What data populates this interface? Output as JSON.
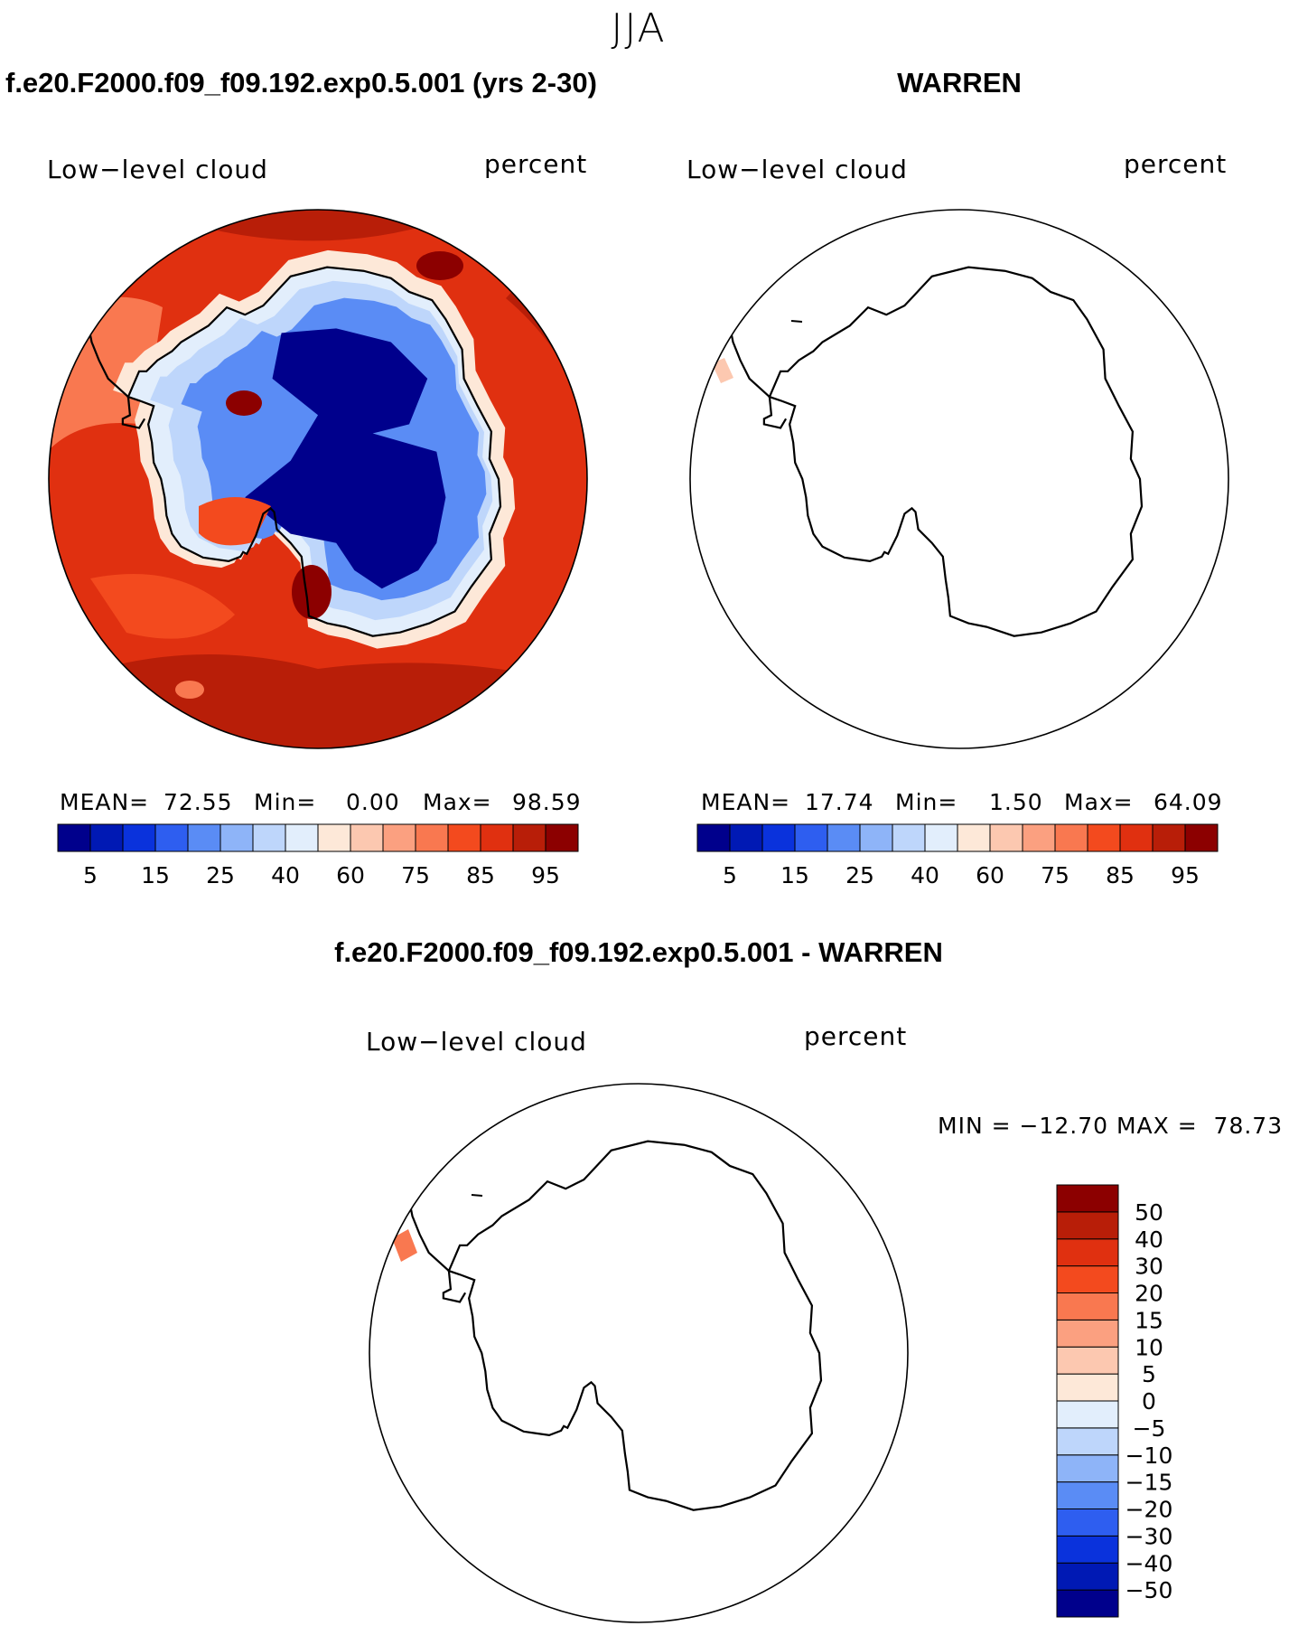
{
  "season": "JJA",
  "panels": [
    {
      "title": "f.e20.F2000.f09_f09.192.exp0.5.001 (yrs 2-30)",
      "variable": "Low−level cloud",
      "units": "percent",
      "stats": {
        "mean_label": "MEAN=",
        "mean": "72.55",
        "min_label": "Min=",
        "min": "0.00",
        "max_label": "Max=",
        "max": "98.59"
      }
    },
    {
      "title": "WARREN",
      "variable": "Low−level cloud",
      "units": "percent",
      "stats": {
        "mean_label": "MEAN=",
        "mean": "17.74",
        "min_label": "Min=",
        "min": "1.50",
        "max_label": "Max=",
        "max": "64.09"
      }
    },
    {
      "title": "f.e20.F2000.f09_f09.192.exp0.5.001 - WARREN",
      "variable": "Low−level cloud",
      "units": "percent",
      "stats_text": "MIN = −12.70 MAX =  78.73"
    }
  ],
  "colorbar_abs": {
    "colors": [
      "#00008c",
      "#0019b4",
      "#0a32dc",
      "#2e5ef0",
      "#5a8cf5",
      "#8eb4f8",
      "#bed6fb",
      "#e2eefc",
      "#fde8d8",
      "#fcc8b0",
      "#fba080",
      "#f97850",
      "#f34a1e",
      "#e03010",
      "#b81e08",
      "#8c0000"
    ],
    "labels": [
      "5",
      "15",
      "25",
      "40",
      "60",
      "75",
      "85",
      "95"
    ]
  },
  "colorbar_diff": {
    "colors": [
      "#00008c",
      "#0019b4",
      "#0a32dc",
      "#2e5ef0",
      "#5a8cf5",
      "#8eb4f8",
      "#bed6fb",
      "#e2eefc",
      "#fde8d8",
      "#fcc8b0",
      "#fba080",
      "#f97850",
      "#f34a1e",
      "#e03010",
      "#b81e08",
      "#8c0000"
    ],
    "labels": [
      "−50",
      "−40",
      "−30",
      "−20",
      "−15",
      "−10",
      "−5",
      "0",
      "5",
      "10",
      "15",
      "20",
      "30",
      "40",
      "50"
    ]
  }
}
